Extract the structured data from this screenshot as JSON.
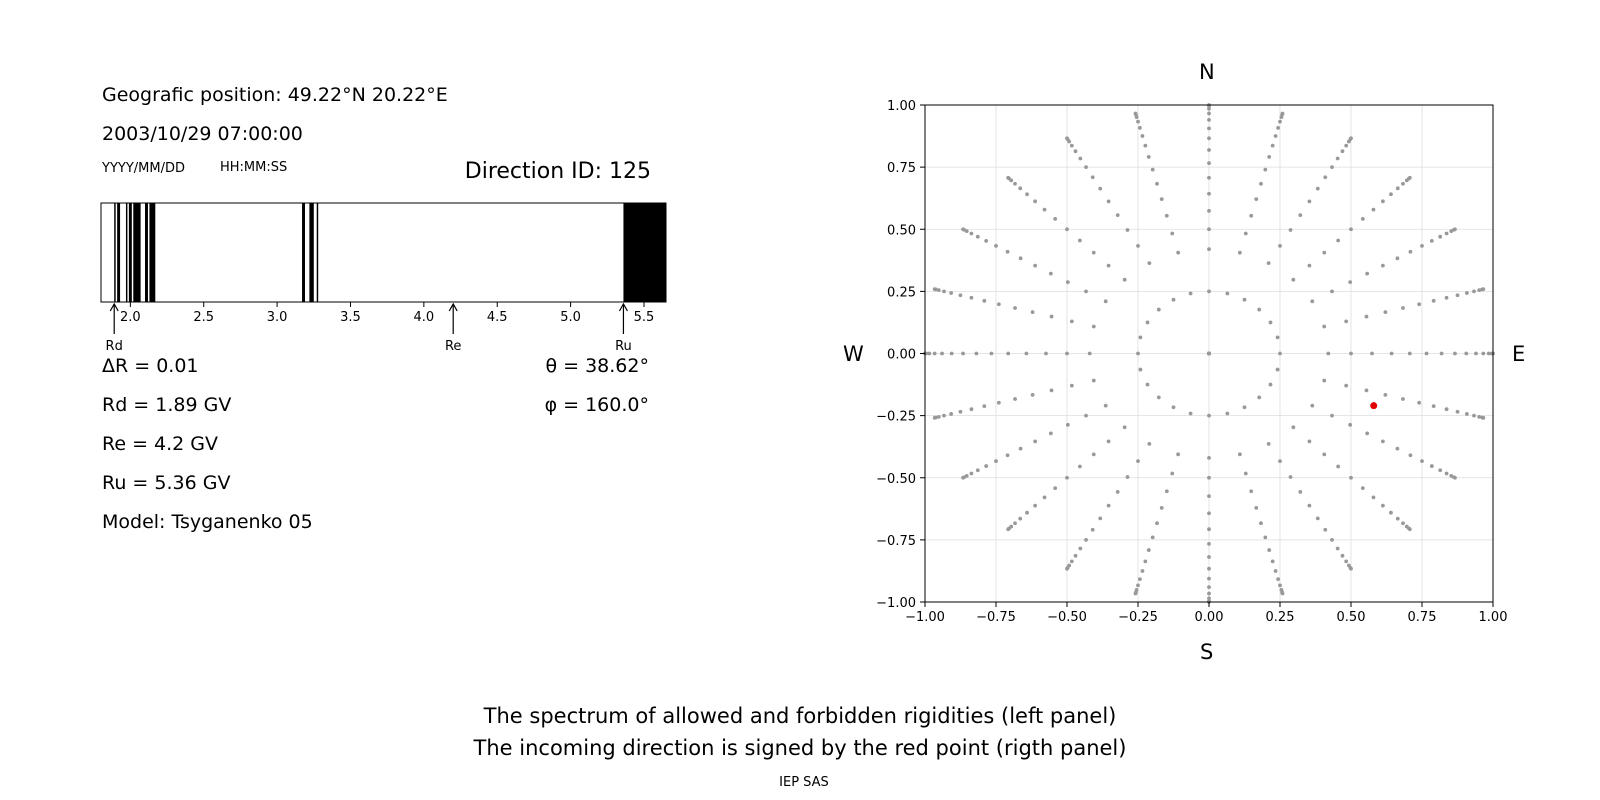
{
  "left_panel": {
    "position_label": "Geografic position: 49.22°N 20.22°E",
    "datetime": "2003/10/29 07:00:00",
    "date_format": "YYYY/MM/DD",
    "time_format": "HH:MM:SS",
    "direction_id": "Direction ID: 125",
    "delta_r": "ΔR = 0.01",
    "rd": "Rd = 1.89 GV",
    "re": "Re = 4.2 GV",
    "ru": "Ru = 5.36 GV",
    "model": "Model: Tsyganenko 05",
    "theta": "θ = 38.62°",
    "phi": "φ = 160.0°"
  },
  "footer": {
    "line1": "The spectrum of allowed and forbidden rigidities (left panel)",
    "line2": "The incoming direction is signed by the red point (rigth panel)",
    "credit": "IEP SAS"
  },
  "chart_data": [
    {
      "type": "bar",
      "xlim": [
        1.8,
        5.65
      ],
      "xticks": [
        "2.0",
        "2.5",
        "3.0",
        "3.5",
        "4.0",
        "4.5",
        "5.0",
        "5.5"
      ],
      "forbidden_color": "#000000",
      "allowed_color": "#ffffff",
      "forbidden_intervals": [
        [
          1.89,
          1.9
        ],
        [
          1.91,
          1.93
        ],
        [
          1.97,
          1.98
        ],
        [
          1.99,
          2.01
        ],
        [
          2.02,
          2.07
        ],
        [
          2.1,
          2.12
        ],
        [
          2.13,
          2.17
        ],
        [
          3.17,
          3.19
        ],
        [
          3.22,
          3.25
        ],
        [
          3.27,
          3.28
        ],
        [
          5.36,
          5.65
        ]
      ],
      "markers": [
        {
          "label": "Rd",
          "value": 1.89
        },
        {
          "label": "Re",
          "value": 4.2
        },
        {
          "label": "Ru",
          "value": 5.36
        }
      ]
    },
    {
      "type": "scatter",
      "xlim": [
        -1.0,
        1.0
      ],
      "ylim": [
        -1.0,
        1.0
      ],
      "xticks": [
        "−1.00",
        "−0.75",
        "−0.50",
        "−0.25",
        "0.00",
        "0.25",
        "0.50",
        "0.75",
        "1.00"
      ],
      "yticks": [
        "−1.00",
        "−0.75",
        "−0.50",
        "−0.25",
        "0.00",
        "0.25",
        "0.50",
        "0.75",
        "1.00"
      ],
      "grid": true,
      "compass": {
        "north": "N",
        "south": "S",
        "west": "W",
        "east": "E"
      },
      "grid_color": "#dddddd",
      "point_color": "#999999",
      "highlight_color": "#e00000",
      "highlight": {
        "x": 0.58,
        "y": -0.21
      },
      "spokes": 24,
      "radii": [
        0.0,
        0.25,
        0.42,
        0.5,
        0.574,
        0.643,
        0.707,
        0.766,
        0.819,
        0.866,
        0.906,
        0.94,
        0.966,
        0.985,
        0.996,
        1.0
      ]
    }
  ]
}
